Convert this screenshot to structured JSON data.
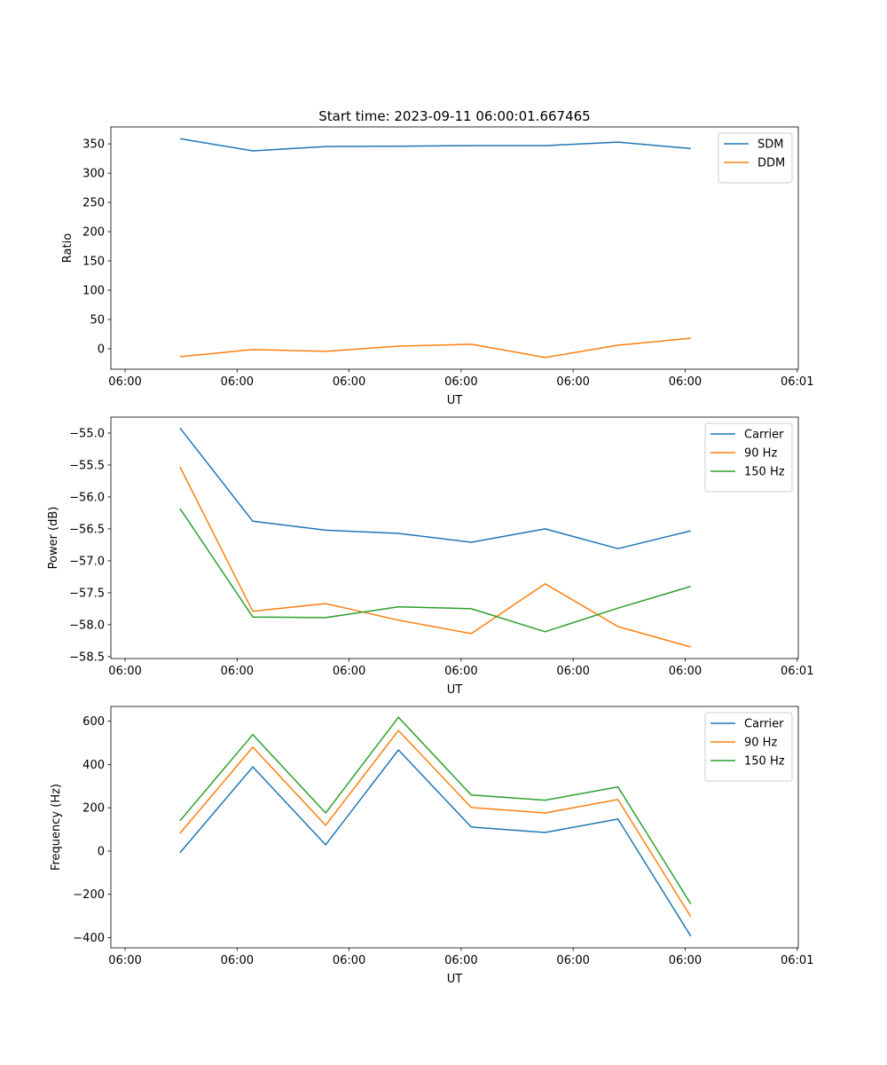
{
  "chart_data": [
    {
      "type": "line",
      "title": "Start time: 2023-09-11 06:00:01.667465",
      "xlabel": "UT",
      "ylabel": "Ratio",
      "x_unit": "seconds after 06:00:00",
      "x": [
        4.9,
        11.4,
        17.9,
        24.4,
        30.9,
        37.5,
        44.0,
        50.5
      ],
      "xlim": [
        -1.27,
        60.1
      ],
      "xticks": [
        0,
        10,
        20,
        30,
        40,
        50,
        60
      ],
      "xtick_labels": [
        "06:00",
        "06:00",
        "06:00",
        "06:00",
        "06:00",
        "06:00",
        "06:01"
      ],
      "ylim": [
        -35,
        379
      ],
      "yticks": [
        0,
        50,
        100,
        150,
        200,
        250,
        300,
        350
      ],
      "ytick_labels": [
        "0",
        "50",
        "100",
        "150",
        "200",
        "250",
        "300",
        "350"
      ],
      "legend": "top-right",
      "series": [
        {
          "name": "SDM",
          "color": "#1f77b4",
          "values": [
            359,
            338,
            345.5,
            346,
            347,
            347,
            353,
            342
          ]
        },
        {
          "name": "DDM",
          "color": "#ff7f0e",
          "values": [
            -13.6,
            -1.5,
            -4.5,
            4.5,
            7.6,
            -15,
            6,
            18
          ]
        }
      ]
    },
    {
      "type": "line",
      "title": "",
      "xlabel": "UT",
      "ylabel": "Power (dB)",
      "x_unit": "seconds after 06:00:00",
      "x": [
        4.9,
        11.4,
        17.9,
        24.4,
        30.9,
        37.5,
        44.0,
        50.5
      ],
      "xlim": [
        -1.27,
        60.1
      ],
      "xticks": [
        0,
        10,
        20,
        30,
        40,
        50,
        60
      ],
      "xtick_labels": [
        "06:00",
        "06:00",
        "06:00",
        "06:00",
        "06:00",
        "06:00",
        "06:01"
      ],
      "ylim": [
        -58.53,
        -54.75
      ],
      "yticks": [
        -55.0,
        -55.5,
        -56.0,
        -56.5,
        -57.0,
        -57.5,
        -58.0,
        -58.5
      ],
      "ytick_labels": [
        "−55.0",
        "−55.5",
        "−56.0",
        "−56.5",
        "−57.0",
        "−57.5",
        "−58.0",
        "−58.5"
      ],
      "legend": "top-right",
      "series": [
        {
          "name": "Carrier",
          "color": "#1f77b4",
          "values": [
            -54.92,
            -56.38,
            -56.52,
            -56.57,
            -56.71,
            -56.5,
            -56.81,
            -56.53
          ]
        },
        {
          "name": "90 Hz",
          "color": "#ff7f0e",
          "values": [
            -55.53,
            -57.79,
            -57.67,
            -57.93,
            -58.14,
            -57.36,
            -58.03,
            -58.35
          ]
        },
        {
          "name": "150 Hz",
          "color": "#2ca02c",
          "values": [
            -56.18,
            -57.88,
            -57.89,
            -57.72,
            -57.75,
            -58.11,
            -57.74,
            -57.4
          ]
        }
      ]
    },
    {
      "type": "line",
      "title": "",
      "xlabel": "UT",
      "ylabel": "Frequency (Hz)",
      "x_unit": "seconds after 06:00:00",
      "x": [
        4.9,
        11.4,
        17.9,
        24.4,
        30.9,
        37.5,
        44.0,
        50.5
      ],
      "xlim": [
        -1.27,
        60.1
      ],
      "xticks": [
        0,
        10,
        20,
        30,
        40,
        50,
        60
      ],
      "xtick_labels": [
        "06:00",
        "06:00",
        "06:00",
        "06:00",
        "06:00",
        "06:00",
        "06:01"
      ],
      "ylim": [
        -447,
        668
      ],
      "yticks": [
        -400,
        -200,
        0,
        200,
        400,
        600
      ],
      "ytick_labels": [
        "−400",
        "−200",
        "0",
        "200",
        "400",
        "600"
      ],
      "legend": "top-right",
      "series": [
        {
          "name": "Carrier",
          "color": "#1f77b4",
          "values": [
            -8,
            389,
            29,
            467,
            111,
            86,
            148,
            -393
          ]
        },
        {
          "name": "90 Hz",
          "color": "#ff7f0e",
          "values": [
            82,
            480,
            119,
            557,
            201,
            176,
            238,
            -303
          ]
        },
        {
          "name": "150 Hz",
          "color": "#2ca02c",
          "values": [
            140,
            538,
            176,
            618,
            259,
            235,
            296,
            -244
          ]
        }
      ]
    }
  ]
}
